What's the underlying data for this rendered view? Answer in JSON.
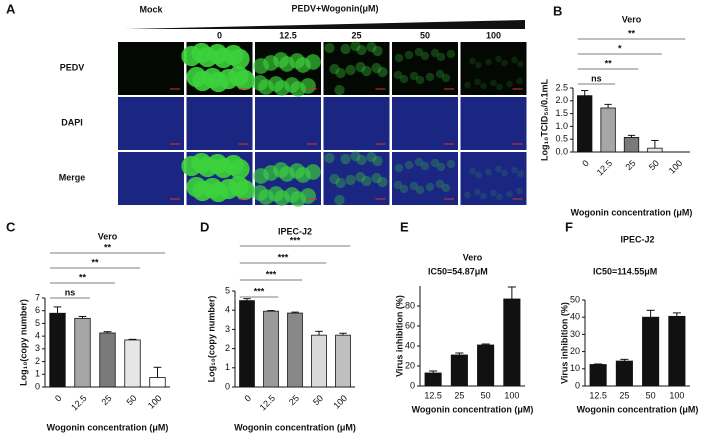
{
  "panel_a": {
    "label": "A",
    "header": "PEDV+Wogonin(μM)",
    "columns": [
      "Mock",
      "0",
      "12.5",
      "25",
      "50",
      "100"
    ],
    "rows": [
      "PEDV",
      "DAPI",
      "Merge"
    ]
  },
  "chart_data": [
    {
      "type": "bar",
      "panel": "B",
      "title": "Vero",
      "xlabel": "Wogonin concentration (μM)",
      "ylabel": "Log₁₀TCID₅₀/0.1mL",
      "categories": [
        "0",
        "12.5",
        "25",
        "50",
        "100"
      ],
      "values": [
        2.2,
        1.72,
        0.57,
        0.15,
        0
      ],
      "errors": [
        0.2,
        0.14,
        0.08,
        0.3,
        0
      ],
      "colors": [
        "#111111",
        "#a6a6a6",
        "#7a7a7a",
        "#e6e6e6",
        "#ffffff"
      ],
      "ylim": [
        0,
        2.5
      ],
      "yticks": [
        {
          "value": 0,
          "label": "0.0"
        },
        0.5,
        {
          "value": 1,
          "label": "1.0"
        },
        1.5,
        {
          "value": 2,
          "label": "2.0"
        },
        2.5
      ],
      "comparisons": [
        {
          "label": "ns",
          "groups": [
            "0",
            "12.5"
          ]
        },
        {
          "label": "**",
          "groups": [
            "0",
            "25"
          ]
        },
        {
          "label": "*",
          "groups": [
            "0",
            "50"
          ]
        },
        {
          "label": "**",
          "groups": [
            "0",
            "100"
          ]
        }
      ]
    },
    {
      "type": "bar",
      "panel": "C",
      "title": "Vero",
      "xlabel": "Wogonin concentration (μM)",
      "ylabel": "Log₁₀(copy number)",
      "categories": [
        "0",
        "12.5",
        "25",
        "50",
        "100"
      ],
      "values": [
        5.8,
        5.4,
        4.25,
        3.7,
        0.75
      ],
      "errors": [
        0.5,
        0.15,
        0.1,
        0.05,
        0.8
      ],
      "colors": [
        "#111111",
        "#a6a6a6",
        "#7a7a7a",
        "#e6e6e6",
        "#ffffff"
      ],
      "ylim": [
        0,
        7
      ],
      "yticks": [
        0,
        1,
        2,
        3,
        4,
        5,
        6,
        7
      ],
      "comparisons": [
        {
          "label": "ns",
          "groups": [
            "0",
            "12.5"
          ]
        },
        {
          "label": "**",
          "groups": [
            "0",
            "25"
          ]
        },
        {
          "label": "**",
          "groups": [
            "0",
            "50"
          ]
        },
        {
          "label": "**",
          "groups": [
            "0",
            "100"
          ]
        }
      ]
    },
    {
      "type": "bar",
      "panel": "D",
      "title": "IPEC-J2",
      "xlabel": "Wogonin concentration (μM)",
      "ylabel": "Log₁₀(copy number)",
      "categories": [
        "0",
        "12.5",
        "25",
        "50",
        "100"
      ],
      "values": [
        4.5,
        3.95,
        3.85,
        2.7,
        2.7
      ],
      "errors": [
        0.1,
        0.03,
        0.05,
        0.2,
        0.1
      ],
      "colors": [
        "#111111",
        "#9a9a9a",
        "#888888",
        "#d9d9d9",
        "#bfbfbf"
      ],
      "ylim": [
        0,
        5
      ],
      "yticks": [
        0,
        1,
        2,
        3,
        4,
        5
      ],
      "comparisons": [
        {
          "label": "***",
          "groups": [
            "0",
            "12.5"
          ]
        },
        {
          "label": "***",
          "groups": [
            "0",
            "25"
          ]
        },
        {
          "label": "***",
          "groups": [
            "0",
            "50"
          ]
        },
        {
          "label": "***",
          "groups": [
            "0",
            "100"
          ]
        }
      ]
    },
    {
      "type": "bar",
      "panel": "E",
      "title": "Vero",
      "annotation": "IC50=54.87μM",
      "xlabel": "Wogonin concentration (μM)",
      "ylabel": "Virus inhibition (%)",
      "categories": [
        "12.5",
        "25",
        "50",
        "100"
      ],
      "values": [
        13,
        31,
        41,
        87
      ],
      "errors": [
        2,
        2,
        1,
        12
      ],
      "colors": [
        "#111111",
        "#111111",
        "#111111",
        "#111111"
      ],
      "ylim": [
        0,
        100
      ],
      "yticks": [
        0,
        20,
        40,
        60,
        80
      ]
    },
    {
      "type": "bar",
      "panel": "F",
      "title": "IPEC-J2",
      "annotation": "IC50=114.55μM",
      "xlabel": "Wogonin concentration (μM)",
      "ylabel": "Virus inhibition (%)",
      "categories": [
        "12.5",
        "25",
        "50",
        "100"
      ],
      "values": [
        12.5,
        14.5,
        40,
        40.5
      ],
      "errors": [
        0.3,
        1,
        4,
        2
      ],
      "colors": [
        "#111111",
        "#111111",
        "#111111",
        "#111111"
      ],
      "ylim": [
        0,
        50
      ],
      "yticks": [
        0,
        10,
        20,
        30,
        40,
        50
      ]
    }
  ]
}
